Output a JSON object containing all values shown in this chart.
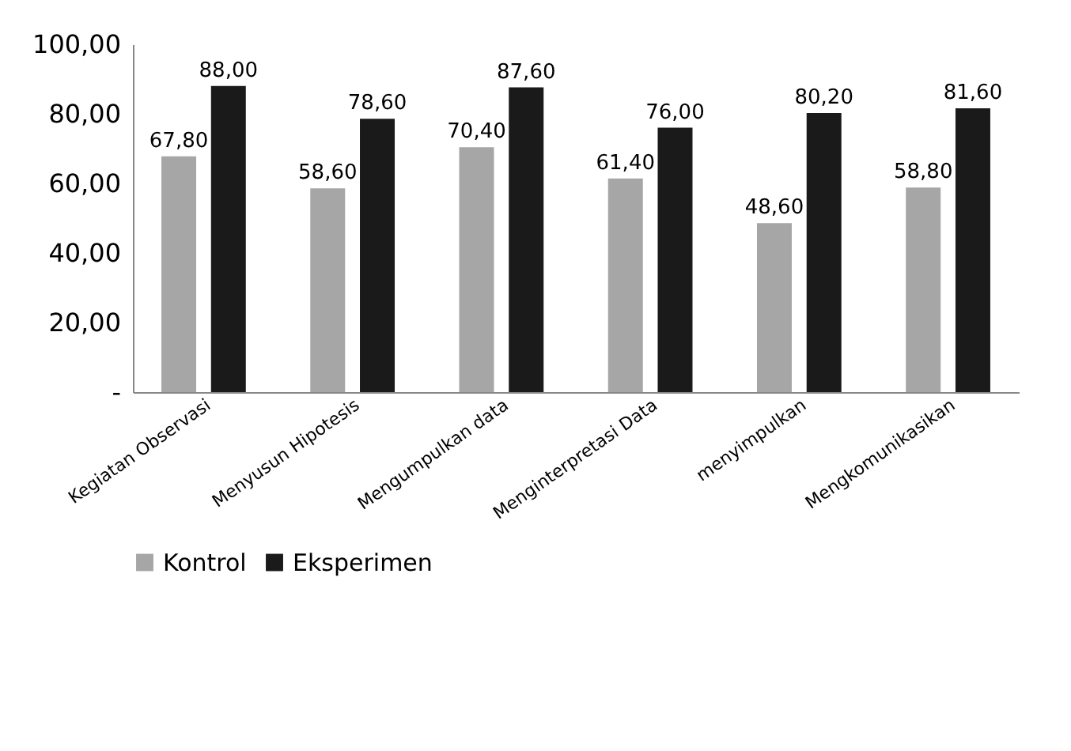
{
  "chart_data": {
    "type": "bar",
    "categories": [
      "Kegiatan Observasi",
      "Menyusun Hipotesis",
      "Mengumpulkan data",
      "Menginterpretasi Data",
      "menyimpulkan",
      "Mengkomunikasikan"
    ],
    "series": [
      {
        "name": "Kontrol",
        "color": "#a6a6a6",
        "values": [
          67.8,
          58.6,
          70.4,
          61.4,
          48.6,
          58.8
        ],
        "value_labels": [
          "67,80",
          "58,60",
          "70,40",
          "61,40",
          "48,60",
          "58,80"
        ]
      },
      {
        "name": "Eksperimen",
        "color": "#1a1a1a",
        "values": [
          88.0,
          78.6,
          87.6,
          76.0,
          80.2,
          81.6
        ],
        "value_labels": [
          "88,00",
          "78,60",
          "87,60",
          "76,00",
          "80,20",
          "81,60"
        ]
      }
    ],
    "ylim": [
      0,
      100
    ],
    "yticks": [
      {
        "value": 0,
        "label": "-"
      },
      {
        "value": 20,
        "label": "20,00"
      },
      {
        "value": 40,
        "label": "40,00"
      },
      {
        "value": 60,
        "label": "60,00"
      },
      {
        "value": 80,
        "label": "80,00"
      },
      {
        "value": 100,
        "label": "100,00"
      }
    ],
    "grid": false,
    "legend": "bottom"
  }
}
